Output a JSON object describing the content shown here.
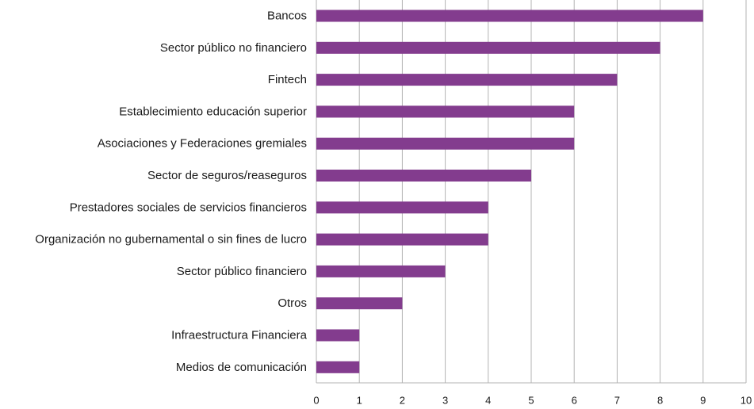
{
  "chart_data": {
    "type": "bar",
    "orientation": "horizontal",
    "categories": [
      "Bancos",
      "Sector público no financiero",
      "Fintech",
      "Establecimiento educación superior",
      "Asociaciones y Federaciones gremiales",
      "Sector de seguros/reaseguros",
      "Prestadores sociales de servicios financieros",
      "Organización no gubernamental o sin fines de lucro",
      "Sector público financiero",
      "Otros",
      "Infraestructura Financiera",
      "Medios de comunicación"
    ],
    "values": [
      9,
      8,
      7,
      6,
      6,
      5,
      4,
      4,
      3,
      2,
      1,
      1
    ],
    "xlim": [
      0,
      10
    ],
    "xticks": [
      "0",
      "1",
      "2",
      "3",
      "4",
      "5",
      "6",
      "7",
      "8",
      "9",
      "10"
    ],
    "grid": true,
    "bar_color": "#833c8e",
    "grid_color": "#b3b3b3"
  }
}
